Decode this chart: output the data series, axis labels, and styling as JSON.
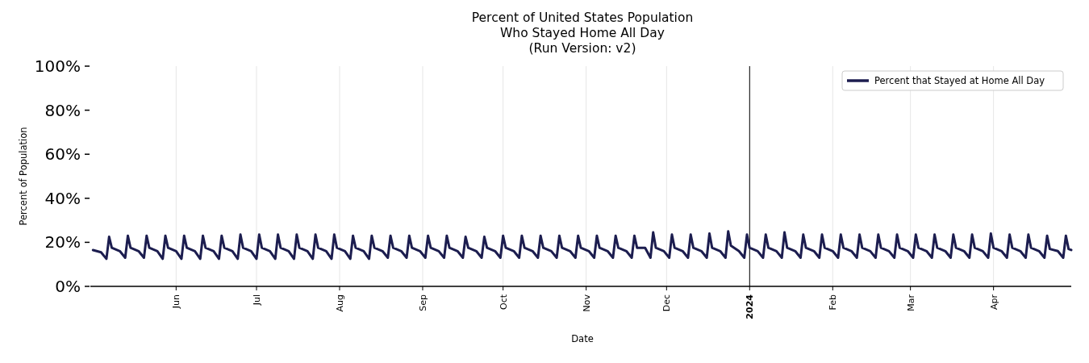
{
  "chart_data": {
    "type": "line",
    "title": "Percent of United States Population\nWho Stayed Home All Day\n(Run Version: v2)",
    "xlabel": "Date",
    "ylabel": "Percent of Population",
    "x": [
      "2023-05-01",
      "2023-05-04",
      "2023-05-06",
      "2023-05-07",
      "2023-05-08",
      "2023-05-11",
      "2023-05-13",
      "2023-05-14",
      "2023-05-15",
      "2023-05-18",
      "2023-05-20",
      "2023-05-21",
      "2023-05-22",
      "2023-05-25",
      "2023-05-27",
      "2023-05-28",
      "2023-05-29",
      "2023-06-01",
      "2023-06-03",
      "2023-06-04",
      "2023-06-05",
      "2023-06-08",
      "2023-06-10",
      "2023-06-11",
      "2023-06-12",
      "2023-06-15",
      "2023-06-17",
      "2023-06-18",
      "2023-06-19",
      "2023-06-22",
      "2023-06-24",
      "2023-06-25",
      "2023-06-26",
      "2023-06-29",
      "2023-07-01",
      "2023-07-02",
      "2023-07-03",
      "2023-07-06",
      "2023-07-08",
      "2023-07-09",
      "2023-07-10",
      "2023-07-13",
      "2023-07-15",
      "2023-07-16",
      "2023-07-17",
      "2023-07-20",
      "2023-07-22",
      "2023-07-23",
      "2023-07-24",
      "2023-07-27",
      "2023-07-29",
      "2023-07-30",
      "2023-07-31",
      "2023-08-03",
      "2023-08-05",
      "2023-08-06",
      "2023-08-07",
      "2023-08-10",
      "2023-08-12",
      "2023-08-13",
      "2023-08-14",
      "2023-08-17",
      "2023-08-19",
      "2023-08-20",
      "2023-08-21",
      "2023-08-24",
      "2023-08-26",
      "2023-08-27",
      "2023-08-28",
      "2023-08-31",
      "2023-09-02",
      "2023-09-03",
      "2023-09-04",
      "2023-09-07",
      "2023-09-09",
      "2023-09-10",
      "2023-09-11",
      "2023-09-14",
      "2023-09-16",
      "2023-09-17",
      "2023-09-18",
      "2023-09-21",
      "2023-09-23",
      "2023-09-24",
      "2023-09-25",
      "2023-09-28",
      "2023-09-30",
      "2023-10-01",
      "2023-10-02",
      "2023-10-05",
      "2023-10-07",
      "2023-10-08",
      "2023-10-09",
      "2023-10-12",
      "2023-10-14",
      "2023-10-15",
      "2023-10-16",
      "2023-10-19",
      "2023-10-21",
      "2023-10-22",
      "2023-10-23",
      "2023-10-26",
      "2023-10-28",
      "2023-10-29",
      "2023-10-30",
      "2023-11-02",
      "2023-11-04",
      "2023-11-05",
      "2023-11-06",
      "2023-11-09",
      "2023-11-11",
      "2023-11-12",
      "2023-11-13",
      "2023-11-16",
      "2023-11-18",
      "2023-11-19",
      "2023-11-20",
      "2023-11-23",
      "2023-11-25",
      "2023-11-26",
      "2023-11-27",
      "2023-11-30",
      "2023-12-02",
      "2023-12-03",
      "2023-12-04",
      "2023-12-07",
      "2023-12-09",
      "2023-12-10",
      "2023-12-11",
      "2023-12-14",
      "2023-12-16",
      "2023-12-17",
      "2023-12-18",
      "2023-12-21",
      "2023-12-23",
      "2023-12-24",
      "2023-12-25",
      "2023-12-28",
      "2023-12-30",
      "2023-12-31",
      "2024-01-01",
      "2024-01-04",
      "2024-01-06",
      "2024-01-07",
      "2024-01-08",
      "2024-01-11",
      "2024-01-13",
      "2024-01-14",
      "2024-01-15",
      "2024-01-18",
      "2024-01-20",
      "2024-01-21",
      "2024-01-22",
      "2024-01-25",
      "2024-01-27",
      "2024-01-28",
      "2024-01-29",
      "2024-02-01",
      "2024-02-03",
      "2024-02-04",
      "2024-02-05",
      "2024-02-08",
      "2024-02-10",
      "2024-02-11",
      "2024-02-12",
      "2024-02-15",
      "2024-02-17",
      "2024-02-18",
      "2024-02-19",
      "2024-02-22",
      "2024-02-24",
      "2024-02-25",
      "2024-02-26",
      "2024-02-29",
      "2024-03-02",
      "2024-03-03",
      "2024-03-04",
      "2024-03-07",
      "2024-03-09",
      "2024-03-10",
      "2024-03-11",
      "2024-03-14",
      "2024-03-16",
      "2024-03-17",
      "2024-03-18",
      "2024-03-21",
      "2024-03-23",
      "2024-03-24",
      "2024-03-25",
      "2024-03-28",
      "2024-03-30",
      "2024-03-31",
      "2024-04-01",
      "2024-04-04",
      "2024-04-06",
      "2024-04-07",
      "2024-04-08",
      "2024-04-11",
      "2024-04-13",
      "2024-04-14",
      "2024-04-15",
      "2024-04-18",
      "2024-04-20",
      "2024-04-21",
      "2024-04-22",
      "2024-04-25",
      "2024-04-27",
      "2024-04-28",
      "2024-04-29",
      "2024-04-30"
    ],
    "series": [
      {
        "name": "Percent that Stayed at Home All Day",
        "color": "#1c1d4f",
        "values": [
          16.5,
          15.5,
          12.5,
          22.5,
          17.5,
          16,
          13,
          23,
          17.5,
          16,
          13,
          23,
          17.5,
          16,
          12.5,
          23,
          17.5,
          16,
          12.5,
          23,
          17.5,
          16,
          12.5,
          23,
          17.5,
          16,
          12.5,
          23,
          17.5,
          16,
          12.5,
          23.5,
          17.5,
          16,
          12.5,
          23.5,
          17.5,
          16,
          12.5,
          23.5,
          17.5,
          16,
          12.5,
          23.5,
          17.5,
          16,
          12.5,
          23.5,
          17.5,
          16,
          12.5,
          23.5,
          17.5,
          16,
          12.5,
          23,
          17.5,
          16,
          12.5,
          23,
          17.5,
          16,
          13,
          23,
          17.5,
          16,
          13,
          23,
          17.5,
          16,
          13,
          23,
          17.5,
          16,
          13,
          23,
          17.5,
          16,
          13,
          22.5,
          17.5,
          16,
          13,
          22.5,
          17.5,
          16,
          13,
          23,
          17.5,
          16,
          13,
          23,
          17.5,
          16,
          13,
          23,
          17.5,
          16,
          13,
          23,
          17.5,
          16,
          13,
          23,
          17.5,
          16,
          13,
          23,
          17.5,
          16,
          13,
          23,
          17.5,
          16,
          13,
          23,
          17.5,
          17.5,
          13,
          24.5,
          17.5,
          16,
          13,
          23.5,
          17.5,
          16,
          13,
          23.5,
          17.5,
          16,
          13,
          24,
          17.5,
          16,
          13,
          25,
          18.5,
          16,
          13,
          23.5,
          17.5,
          16,
          13,
          23.5,
          17.5,
          16,
          13,
          24.5,
          17.5,
          16,
          13,
          23.5,
          17.5,
          16,
          13,
          23.5,
          17.5,
          16,
          13,
          23.5,
          17.5,
          16,
          13,
          23.5,
          17.5,
          16,
          13,
          23.5,
          17.5,
          16,
          13,
          23.5,
          17.5,
          16,
          13,
          23.5,
          17.5,
          16,
          13,
          23.5,
          17.5,
          16,
          13,
          23.5,
          17.5,
          16,
          13,
          23.5,
          17.5,
          16,
          13,
          24,
          17.5,
          16,
          13,
          23.5,
          17.5,
          16,
          13,
          23.5,
          17.5,
          16,
          13,
          23,
          17,
          16,
          13,
          23,
          17,
          16.5
        ]
      }
    ],
    "xlim": [
      "2023-04-30",
      "2024-04-30"
    ],
    "xticks": [
      {
        "value": "2023-06-01",
        "label": "Jun"
      },
      {
        "value": "2023-07-01",
        "label": "Jul"
      },
      {
        "value": "2023-08-01",
        "label": "Aug"
      },
      {
        "value": "2023-09-01",
        "label": "Sep"
      },
      {
        "value": "2023-10-01",
        "label": "Oct"
      },
      {
        "value": "2023-11-01",
        "label": "Nov"
      },
      {
        "value": "2023-12-01",
        "label": "Dec"
      },
      {
        "value": "2024-01-01",
        "label": "2024"
      },
      {
        "value": "2024-02-01",
        "label": "Feb"
      },
      {
        "value": "2024-03-01",
        "label": "Mar"
      },
      {
        "value": "2024-04-01",
        "label": "Apr"
      }
    ],
    "ylim": [
      0,
      100
    ],
    "yticks": [
      {
        "value": 0,
        "label": "0%"
      },
      {
        "value": 20,
        "label": "20%"
      },
      {
        "value": 40,
        "label": "40%"
      },
      {
        "value": 60,
        "label": "60%"
      },
      {
        "value": 80,
        "label": "80%"
      },
      {
        "value": 100,
        "label": "100%"
      }
    ],
    "ref_lines": [
      {
        "axis": "x",
        "value": "2024-01-01",
        "color": "#000000"
      }
    ],
    "grid": "x",
    "legend": "top right",
    "line_style": "solid",
    "marker": "none"
  }
}
